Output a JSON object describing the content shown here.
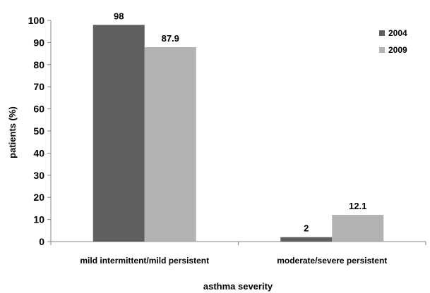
{
  "chart_data": {
    "type": "bar",
    "title": "",
    "xlabel": "asthma severity",
    "ylabel": "patients (%)",
    "ylim": [
      0,
      100
    ],
    "yticks": [
      0,
      10,
      20,
      30,
      40,
      50,
      60,
      70,
      80,
      90,
      100
    ],
    "grid": false,
    "legend_position": "top-right",
    "categories": [
      "mild intermittent/mild persistent",
      "moderate/severe persistent"
    ],
    "series": [
      {
        "name": "2004",
        "color": "#5f5f5f",
        "values": [
          98,
          2
        ],
        "labels": [
          "98",
          "2"
        ]
      },
      {
        "name": "2009",
        "color": "#b3b3b3",
        "values": [
          87.9,
          12.1
        ],
        "labels": [
          "87.9",
          "12.1"
        ]
      }
    ]
  }
}
